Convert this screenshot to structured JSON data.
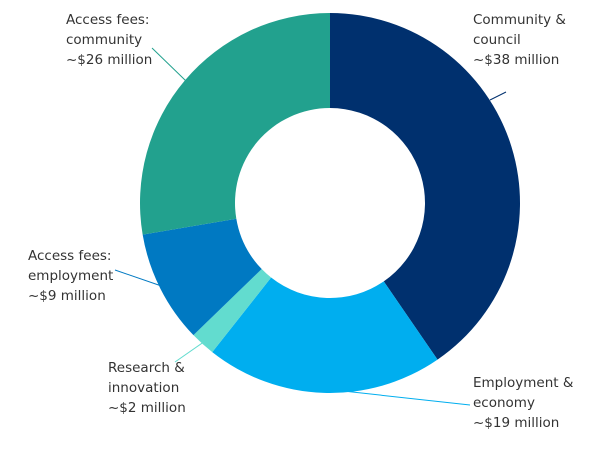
{
  "chart_data": {
    "type": "donut",
    "categories": [
      "Community & council",
      "Employment & economy",
      "Research & innovation",
      "Access fees: employment",
      "Access fees: community"
    ],
    "values": [
      38,
      19,
      2,
      9,
      26
    ],
    "value_labels": [
      "~$38 million",
      "~$19 million",
      "~$2 million",
      "~$9 million",
      "~$26 million"
    ],
    "colors": [
      "#00306e",
      "#00aeef",
      "#62dccf",
      "#0079c2",
      "#22a18e"
    ]
  }
}
